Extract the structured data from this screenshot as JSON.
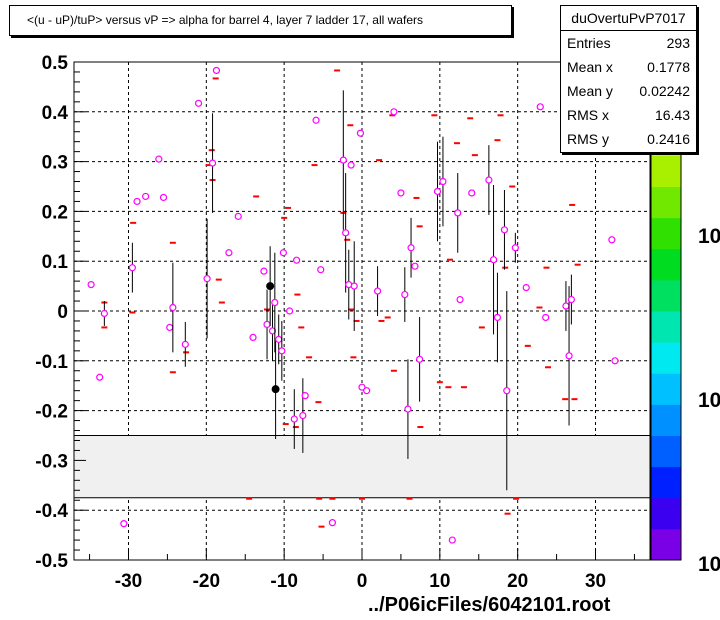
{
  "title": "<(u - uP)/tuP> versus   vP => alpha for barrel 4, layer 7 ladder 17, all wafers",
  "stats": {
    "name": "duOvertuPvP7017",
    "rows": [
      {
        "label": "Entries",
        "value": "293"
      },
      {
        "label": "Mean x",
        "value": "0.1778"
      },
      {
        "label": "Mean y",
        "value": "0.02242"
      },
      {
        "label": "RMS x",
        "value": "16.43"
      },
      {
        "label": "RMS y",
        "value": "0.2416"
      }
    ]
  },
  "footer": "../P06icFiles/6042101.root",
  "colors": {
    "marker": "#ff00ff",
    "dash": "#ff0000",
    "grid": "#000000",
    "band": "#f0f0f0"
  },
  "chart_data": {
    "type": "scatter",
    "xlim": [
      -37,
      37
    ],
    "ylim": [
      -0.5,
      0.5
    ],
    "x_ticks": [
      -30,
      -20,
      -10,
      0,
      10,
      20,
      30
    ],
    "x_tick_labels": [
      "-30",
      "-20",
      "-10",
      "0",
      "10",
      "20",
      "30"
    ],
    "y_ticks": [
      0.5,
      0.4,
      0.3,
      0.2,
      0.1,
      0,
      -0.1,
      -0.2,
      -0.3,
      -0.4,
      -0.5
    ],
    "y_tick_labels": [
      "0.5",
      "0.4",
      "0.3",
      "0.2",
      "0.1",
      "0",
      "-0.1",
      "-0.2",
      "-0.3",
      "-0.4",
      "-0.5"
    ],
    "grid": true,
    "excluded_band": [
      -0.375,
      -0.25
    ],
    "colorbar": {
      "labels": [
        "10",
        "10",
        "10"
      ],
      "colors": [
        "#7a00e6",
        "#3b00f0",
        "#0020ff",
        "#0060ff",
        "#0090ff",
        "#00c0ff",
        "#00e8f0",
        "#00e6b0",
        "#00e060",
        "#00dd20",
        "#30e000",
        "#70e800",
        "#a8f000",
        "#d8f500",
        "#fff000",
        "#ffd000"
      ]
    },
    "points": [
      {
        "x": -34.8,
        "y": 0.053
      },
      {
        "x": -33.7,
        "y": -0.133
      },
      {
        "x": -33.1,
        "y": -0.005,
        "err": 0.025
      },
      {
        "x": -30.6,
        "y": -0.427
      },
      {
        "x": -29.5,
        "y": 0.087,
        "err": 0.05
      },
      {
        "x": -28.9,
        "y": 0.22
      },
      {
        "x": -27.8,
        "y": 0.23
      },
      {
        "x": -26.1,
        "y": 0.305
      },
      {
        "x": -25.5,
        "y": 0.228
      },
      {
        "x": -24.7,
        "y": -0.033
      },
      {
        "x": -24.3,
        "y": 0.007,
        "err": 0.09
      },
      {
        "x": -22.7,
        "y": -0.067,
        "err": 0.045
      },
      {
        "x": -21.0,
        "y": 0.417
      },
      {
        "x": -19.9,
        "y": 0.065,
        "err": 0.12
      },
      {
        "x": -19.2,
        "y": 0.297,
        "err": 0.1
      },
      {
        "x": -18.7,
        "y": 0.483
      },
      {
        "x": -17.1,
        "y": 0.117
      },
      {
        "x": -15.9,
        "y": 0.19
      },
      {
        "x": -14.0,
        "y": -0.053
      },
      {
        "x": -12.6,
        "y": 0.08
      },
      {
        "x": -12.2,
        "y": -0.027,
        "err": 0.07
      },
      {
        "x": -11.8,
        "y": 0.05,
        "err": 0.08,
        "filled": true
      },
      {
        "x": -11.5,
        "y": -0.04,
        "err": 0.06
      },
      {
        "x": -11.2,
        "y": 0.017,
        "err": 0.1
      },
      {
        "x": -11.1,
        "y": -0.157,
        "err": 0.1,
        "filled": true
      },
      {
        "x": -10.7,
        "y": -0.057,
        "err": 0.05
      },
      {
        "x": -10.3,
        "y": -0.08,
        "err": 0.06
      },
      {
        "x": -10.1,
        "y": 0.117
      },
      {
        "x": -9.3,
        "y": 0.0
      },
      {
        "x": -8.7,
        "y": -0.217,
        "err": 0.06
      },
      {
        "x": -8.4,
        "y": 0.102
      },
      {
        "x": -7.6,
        "y": -0.21,
        "err": 0.075
      },
      {
        "x": -7.3,
        "y": -0.17
      },
      {
        "x": -5.9,
        "y": 0.383
      },
      {
        "x": -5.3,
        "y": 0.083
      },
      {
        "x": -3.8,
        "y": -0.425
      },
      {
        "x": -2.4,
        "y": 0.303,
        "err": 0.14
      },
      {
        "x": -2.1,
        "y": 0.157,
        "err": 0.12
      },
      {
        "x": -1.7,
        "y": 0.053,
        "err": 0.07
      },
      {
        "x": -1.4,
        "y": 0.293
      },
      {
        "x": -1.0,
        "y": 0.05,
        "err": 0.09
      },
      {
        "x": -0.2,
        "y": 0.357
      },
      {
        "x": 0.0,
        "y": -0.153
      },
      {
        "x": 0.6,
        "y": -0.16
      },
      {
        "x": 2.0,
        "y": 0.04,
        "err": 0.05
      },
      {
        "x": 4.1,
        "y": 0.4
      },
      {
        "x": 5.0,
        "y": 0.237
      },
      {
        "x": 5.5,
        "y": 0.033,
        "err": 0.055
      },
      {
        "x": 5.9,
        "y": -0.197,
        "err": 0.1
      },
      {
        "x": 6.3,
        "y": 0.127,
        "err": 0.06
      },
      {
        "x": 6.8,
        "y": 0.09
      },
      {
        "x": 7.4,
        "y": -0.097,
        "err": 0.085
      },
      {
        "x": 9.7,
        "y": 0.24,
        "err": 0.1
      },
      {
        "x": 10.4,
        "y": 0.26,
        "err": 0.09
      },
      {
        "x": 11.6,
        "y": -0.46
      },
      {
        "x": 12.3,
        "y": 0.197,
        "err": 0.08
      },
      {
        "x": 12.6,
        "y": 0.023
      },
      {
        "x": 14.1,
        "y": 0.237
      },
      {
        "x": 16.3,
        "y": 0.263,
        "err": 0.07
      },
      {
        "x": 16.9,
        "y": 0.103,
        "err": 0.15
      },
      {
        "x": 17.4,
        "y": -0.013,
        "err": 0.09
      },
      {
        "x": 18.3,
        "y": 0.163,
        "err": 0.08
      },
      {
        "x": 18.6,
        "y": -0.16,
        "err": 0.2
      },
      {
        "x": 19.7,
        "y": 0.127,
        "err": 0.03
      },
      {
        "x": 21.1,
        "y": 0.047
      },
      {
        "x": 22.9,
        "y": 0.41
      },
      {
        "x": 23.6,
        "y": -0.013
      },
      {
        "x": 26.2,
        "y": 0.01,
        "err": 0.05
      },
      {
        "x": 26.6,
        "y": -0.09,
        "err": 0.14
      },
      {
        "x": 26.9,
        "y": 0.023,
        "err": 0.05
      },
      {
        "x": 27.6,
        "y": 0.387
      },
      {
        "x": 32.1,
        "y": 0.143
      },
      {
        "x": 32.5,
        "y": -0.1
      }
    ],
    "red_dashes": [
      {
        "x": -33.1,
        "y": 0.017
      },
      {
        "x": -33.1,
        "y": -0.033
      },
      {
        "x": -29.4,
        "y": 0.177
      },
      {
        "x": -29.5,
        "y": -0.003
      },
      {
        "x": -24.3,
        "y": 0.137
      },
      {
        "x": -24.3,
        "y": -0.123
      },
      {
        "x": -22.6,
        "y": -0.083
      },
      {
        "x": -19.7,
        "y": 0.293
      },
      {
        "x": -19.3,
        "y": 0.323
      },
      {
        "x": -19.2,
        "y": 0.263
      },
      {
        "x": -18.8,
        "y": 0.467
      },
      {
        "x": -18.4,
        "y": 0.063
      },
      {
        "x": -18.0,
        "y": 0.017
      },
      {
        "x": -14.5,
        "y": -0.377
      },
      {
        "x": -13.6,
        "y": 0.23
      },
      {
        "x": -12.2,
        "y": 0.003
      },
      {
        "x": -10.0,
        "y": 0.187
      },
      {
        "x": -9.8,
        "y": -0.227
      },
      {
        "x": -9.5,
        "y": 0.207
      },
      {
        "x": -8.3,
        "y": 0.033
      },
      {
        "x": -8.5,
        "y": -0.233
      },
      {
        "x": -7.8,
        "y": -0.033
      },
      {
        "x": -7.3,
        "y": -0.173
      },
      {
        "x": -6.8,
        "y": -0.093
      },
      {
        "x": -6.1,
        "y": 0.293
      },
      {
        "x": -5.6,
        "y": -0.183
      },
      {
        "x": -5.5,
        "y": -0.377
      },
      {
        "x": -5.2,
        "y": -0.433
      },
      {
        "x": -3.8,
        "y": -0.377
      },
      {
        "x": -3.2,
        "y": 0.483
      },
      {
        "x": -2.4,
        "y": 0.197
      },
      {
        "x": -1.9,
        "y": 0.143
      },
      {
        "x": -1.5,
        "y": 0.373
      },
      {
        "x": -1.4,
        "y": 0.003
      },
      {
        "x": -1.1,
        "y": -0.093
      },
      {
        "x": -0.7,
        "y": -0.02
      },
      {
        "x": 0.0,
        "y": -0.377
      },
      {
        "x": 2.2,
        "y": 0.303
      },
      {
        "x": 2.5,
        "y": -0.02
      },
      {
        "x": 3.3,
        "y": -0.013
      },
      {
        "x": 3.9,
        "y": 0.393
      },
      {
        "x": 4.1,
        "y": -0.12
      },
      {
        "x": 6.1,
        "y": -0.377
      },
      {
        "x": 7.0,
        "y": 0.227
      },
      {
        "x": 7.4,
        "y": 0.17
      },
      {
        "x": 7.5,
        "y": -0.233
      },
      {
        "x": 9.3,
        "y": 0.393
      },
      {
        "x": 10.0,
        "y": -0.143
      },
      {
        "x": 11.1,
        "y": -0.153
      },
      {
        "x": 11.3,
        "y": 0.103
      },
      {
        "x": 12.2,
        "y": 0.337
      },
      {
        "x": 13.1,
        "y": -0.153
      },
      {
        "x": 13.9,
        "y": 0.387
      },
      {
        "x": 14.5,
        "y": 0.313
      },
      {
        "x": 15.4,
        "y": -0.033
      },
      {
        "x": 17.4,
        "y": 0.343
      },
      {
        "x": 17.8,
        "y": 0.393
      },
      {
        "x": 18.4,
        "y": 0.087
      },
      {
        "x": 18.7,
        "y": -0.407
      },
      {
        "x": 19.3,
        "y": 0.25
      },
      {
        "x": 19.8,
        "y": -0.377
      },
      {
        "x": 21.3,
        "y": -0.07
      },
      {
        "x": 22.8,
        "y": 0.007
      },
      {
        "x": 23.7,
        "y": 0.087
      },
      {
        "x": 23.9,
        "y": -0.113
      },
      {
        "x": 26.1,
        "y": -0.177
      },
      {
        "x": 27.0,
        "y": 0.213
      },
      {
        "x": 27.3,
        "y": -0.177
      },
      {
        "x": 27.7,
        "y": 0.093
      },
      {
        "x": 32.6,
        "y": -0.1
      }
    ]
  }
}
